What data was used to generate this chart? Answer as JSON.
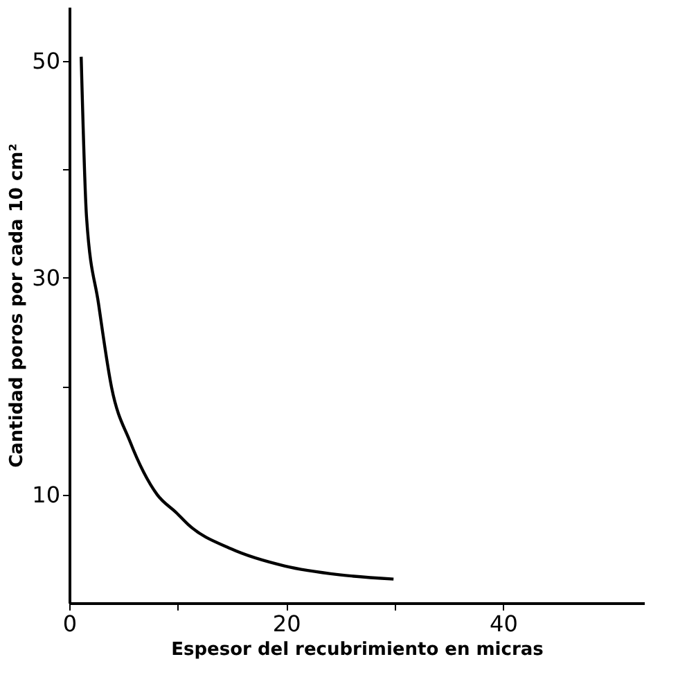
{
  "chart_data": {
    "type": "line",
    "xlabel": "Espesor del recubrimiento en micras",
    "ylabel": "Cantidad poros por cada 10 cm²",
    "x": [
      1.1,
      1.6,
      2.7,
      3.9,
      5.6,
      8.1,
      9.9,
      11,
      14.9,
      19.9,
      24.9,
      29.9
    ],
    "series": [
      {
        "color": "#000000",
        "values": [
          50.4,
          35.5,
          27.6,
          19.9,
          14.9,
          10,
          8.3,
          7.2,
          5,
          3.4,
          2.6,
          2.2
        ]
      }
    ],
    "xlim": [
      0,
      53
    ],
    "ylim": [
      0,
      55
    ],
    "xticks": [
      0,
      {
        "value": 10,
        "label": null
      },
      20,
      {
        "value": 30,
        "label": null
      },
      40
    ],
    "yticks": [
      10,
      {
        "value": 20,
        "label": null
      },
      30,
      {
        "value": 40,
        "label": null
      },
      50
    ],
    "grid": false,
    "legend": false,
    "marker": "none",
    "line_style": "solid"
  }
}
